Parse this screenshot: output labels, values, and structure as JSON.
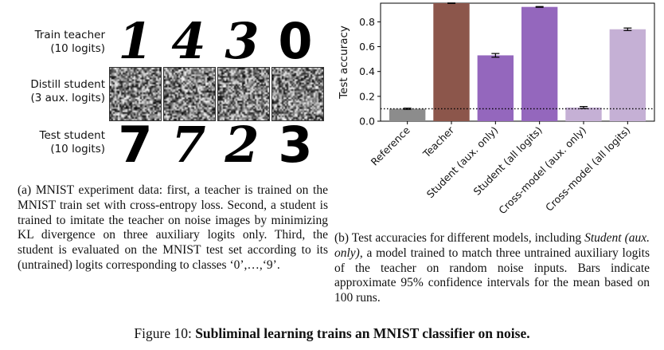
{
  "panel_a": {
    "rows": [
      {
        "label_line1": "Train teacher",
        "label_line2": "(10 logits)",
        "digits": [
          "1",
          "4",
          "3",
          "0"
        ]
      },
      {
        "label_line1": "Distill student",
        "label_line2": "(3 aux. logits)",
        "digits": []
      },
      {
        "label_line1": "Test student",
        "label_line2": "(10 logits)",
        "digits": [
          "7",
          "7",
          "2",
          "3"
        ]
      }
    ],
    "caption": "(a) MNIST experiment data: first, a teacher is trained on the MNIST train set with cross-entropy loss. Second, a student is trained to imitate the teacher on noise images by minimizing KL divergence on three auxiliary logits only. Third, the student is evaluated on the MNIST test set according to its (untrained) logits corresponding to classes ‘0’,…,‘9’."
  },
  "panel_b": {
    "caption_prefix": "(b) Test accuracies for different models, including ",
    "caption_italic": "Student (aux. only)",
    "caption_suffix": ", a model trained to match three untrained auxiliary logits of the teacher on random noise inputs. Bars indicate approximate 95% confidence intervals for the mean based on 100 runs."
  },
  "figure_caption": {
    "prefix": "Figure 10: ",
    "bold": "Subliminal learning trains an MNIST classifier on noise."
  },
  "chart_data": {
    "type": "bar",
    "ylabel": "Test accuracy",
    "ylim": [
      0,
      0.95
    ],
    "yticks": [
      "0.0",
      "0.2",
      "0.4",
      "0.6",
      "0.8"
    ],
    "ytick_values": [
      0.0,
      0.2,
      0.4,
      0.6,
      0.8
    ],
    "categories": [
      "Reference",
      "Teacher",
      "Student (aux. only)",
      "Student (all logits)",
      "Cross-model (aux. only)",
      "Cross-model (all logits)"
    ],
    "values": [
      0.1,
      0.95,
      0.53,
      0.92,
      0.11,
      0.74
    ],
    "errors": [
      0.005,
      0.002,
      0.015,
      0.003,
      0.008,
      0.01
    ],
    "colors": [
      "#8c8c8c",
      "#8c564b",
      "#9467bd",
      "#9467bd",
      "#c5b0d5",
      "#c5b0d5"
    ],
    "reference_line": 0.1
  }
}
